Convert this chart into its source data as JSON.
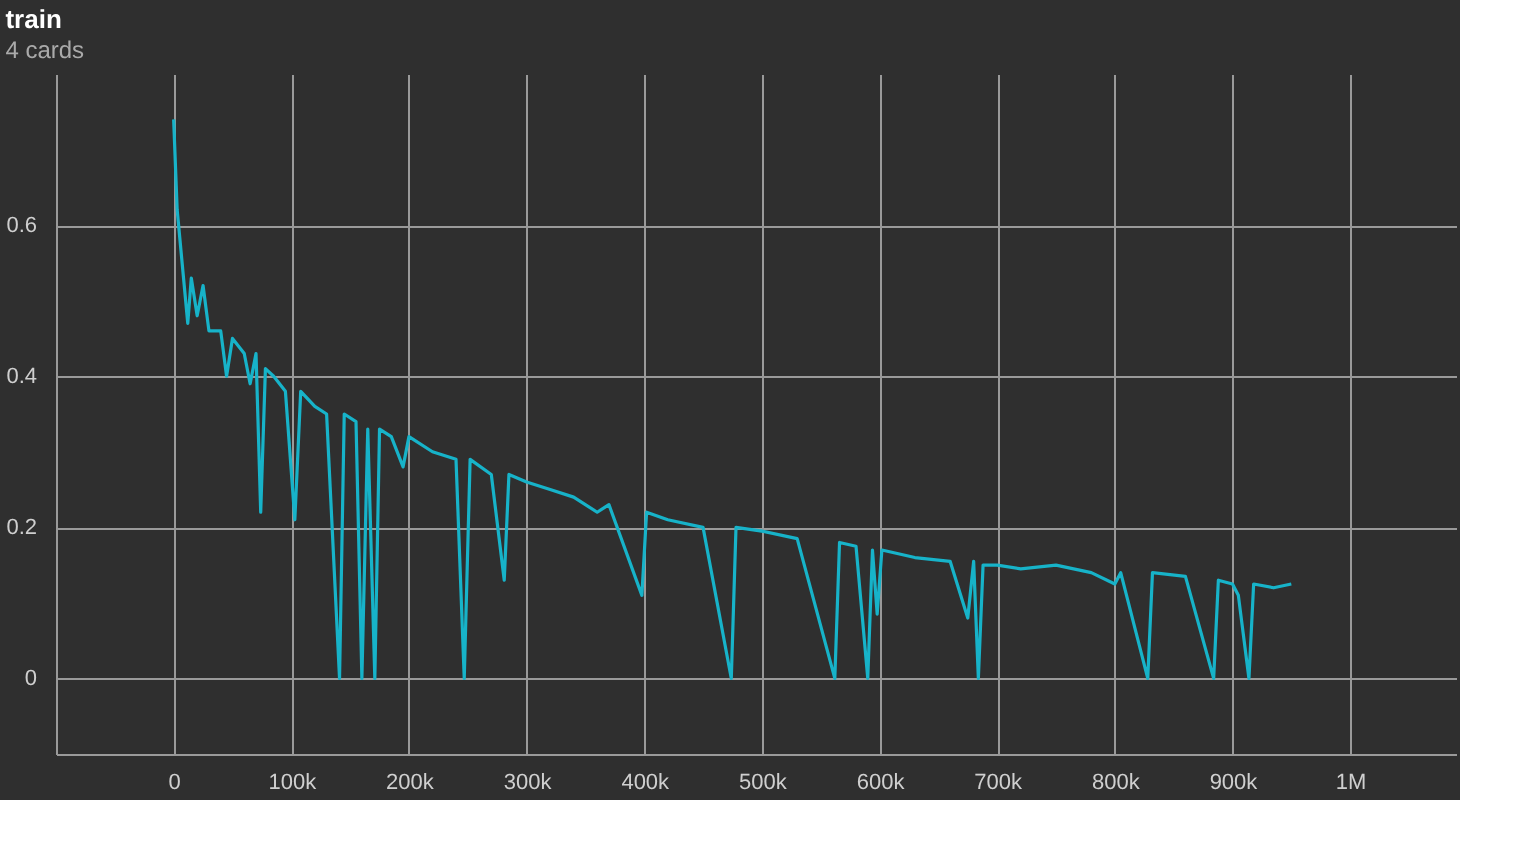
{
  "chart_data": {
    "type": "line",
    "title": "train",
    "subtitle": "4 cards",
    "x": [
      0,
      3000,
      12000,
      15000,
      20000,
      25000,
      30000,
      40000,
      45000,
      50000,
      60000,
      65000,
      70000,
      74000,
      78000,
      85000,
      95000,
      103000,
      108000,
      120000,
      130000,
      141000,
      145000,
      155000,
      160000,
      165000,
      171000,
      175000,
      185000,
      195000,
      200000,
      220000,
      240000,
      247000,
      252000,
      270000,
      281000,
      285000,
      300000,
      320000,
      340000,
      360000,
      370000,
      398000,
      402000,
      420000,
      450000,
      474000,
      478000,
      500000,
      530000,
      562000,
      566000,
      580000,
      590000,
      594000,
      598000,
      602000,
      630000,
      660000,
      675000,
      680000,
      684000,
      688000,
      700000,
      720000,
      750000,
      780000,
      800000,
      805000,
      828000,
      832000,
      860000,
      884000,
      888000,
      900000,
      905000,
      914000,
      918000,
      935000,
      950000
    ],
    "series": [
      {
        "color": "#17b3c9",
        "values": [
          0.74,
          0.62,
          0.47,
          0.53,
          0.48,
          0.52,
          0.46,
          0.46,
          0.4,
          0.45,
          0.43,
          0.39,
          0.43,
          0.22,
          0.41,
          0.4,
          0.38,
          0.21,
          0.38,
          0.36,
          0.35,
          0.0,
          0.35,
          0.34,
          0.0,
          0.33,
          0.0,
          0.33,
          0.32,
          0.28,
          0.32,
          0.3,
          0.29,
          0.0,
          0.29,
          0.27,
          0.13,
          0.27,
          0.26,
          0.25,
          0.24,
          0.22,
          0.23,
          0.11,
          0.22,
          0.21,
          0.2,
          0.0,
          0.2,
          0.195,
          0.185,
          0.0,
          0.18,
          0.175,
          0.0,
          0.17,
          0.085,
          0.17,
          0.16,
          0.155,
          0.08,
          0.155,
          0.0,
          0.15,
          0.15,
          0.145,
          0.15,
          0.14,
          0.125,
          0.14,
          0.0,
          0.14,
          0.135,
          0.0,
          0.13,
          0.125,
          0.11,
          0.0,
          0.125,
          0.12,
          0.125
        ]
      }
    ],
    "xlim": [
      -100000,
      1090000
    ],
    "xticks": [
      {
        "value": 0,
        "label": "0"
      },
      {
        "value": 100000,
        "label": "100k"
      },
      {
        "value": 200000,
        "label": "200k"
      },
      {
        "value": 300000,
        "label": "300k"
      },
      {
        "value": 400000,
        "label": "400k"
      },
      {
        "value": 500000,
        "label": "500k"
      },
      {
        "value": 600000,
        "label": "600k"
      },
      {
        "value": 700000,
        "label": "700k"
      },
      {
        "value": 800000,
        "label": "800k"
      },
      {
        "value": 900000,
        "label": "900k"
      },
      {
        "value": 1000000,
        "label": "1M"
      }
    ],
    "ylim": [
      -0.1,
      0.8
    ],
    "yticks": [
      0,
      0.2,
      0.4,
      0.6
    ],
    "grid": true,
    "marker": "none",
    "line_style": "solid"
  }
}
